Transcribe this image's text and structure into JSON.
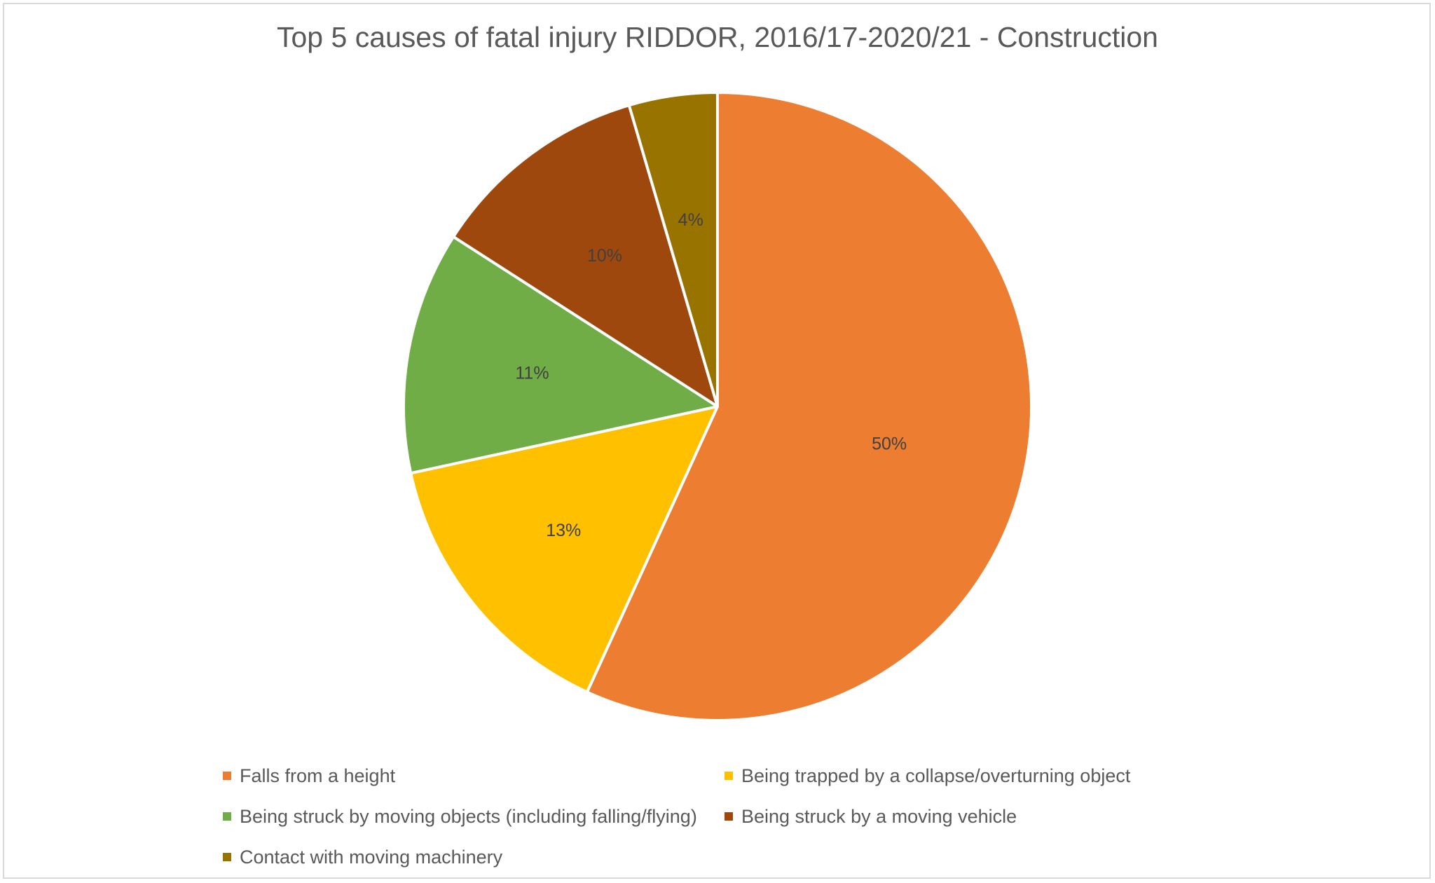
{
  "chart_data": {
    "type": "pie",
    "title": "Top 5 causes of fatal injury RIDDOR, 2016/17-2020/21 - Construction",
    "series": [
      {
        "slices": [
          {
            "label": "Falls from a height",
            "percent": 50,
            "data_label": "50%",
            "color": "#ED7D31"
          },
          {
            "label": "Being trapped by a collapse/overturning object",
            "percent": 13,
            "data_label": "13%",
            "color": "#FFC000"
          },
          {
            "label": "Being struck by moving objects (including falling/flying)",
            "percent": 11,
            "data_label": "11%",
            "color": "#70AD47"
          },
          {
            "label": "Being struck by a moving vehicle",
            "percent": 10,
            "data_label": "10%",
            "color": "#9E480E"
          },
          {
            "label": "Contact with moving machinery",
            "percent": 4,
            "data_label": "4%",
            "color": "#997300"
          }
        ]
      }
    ],
    "legend_position": "bottom"
  }
}
